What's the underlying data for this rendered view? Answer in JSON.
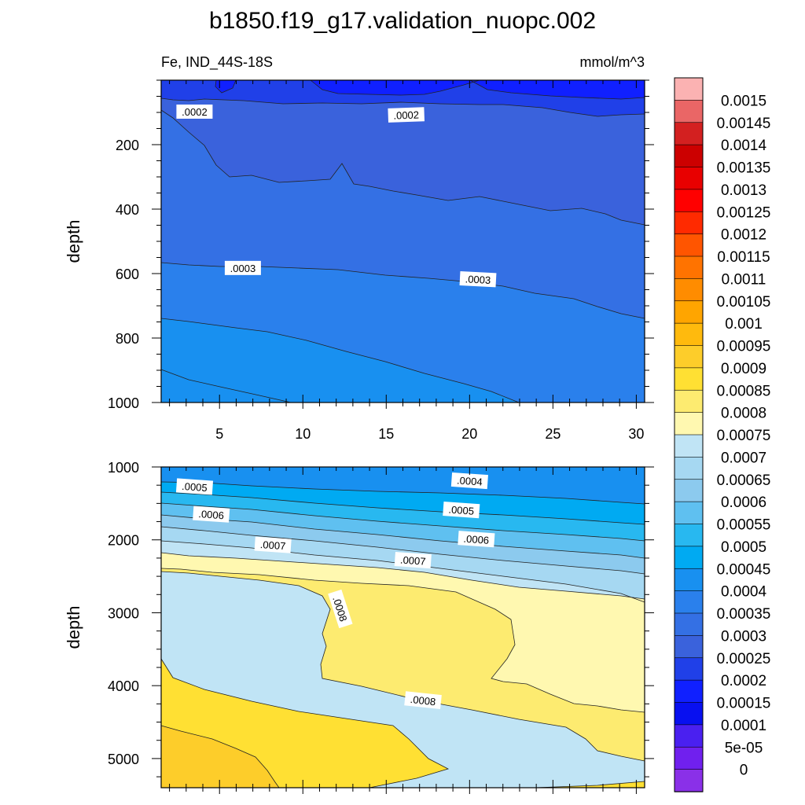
{
  "chart_data": {
    "type": "contour",
    "title": "b1850.f19_g17.validation_nuopc.002",
    "variable_label": "Fe, IND_44S-18S",
    "units": "mmol/m^3",
    "panels": [
      {
        "name": "upper",
        "ylabel": "depth",
        "ylim": [
          1000,
          0
        ],
        "xlim": [
          1.5,
          30.5
        ],
        "x_ticks": [
          5,
          10,
          15,
          20,
          25,
          30
        ],
        "y_ticks": [
          200,
          400,
          600,
          800,
          1000
        ],
        "contour_labels": [
          {
            "text": ".0002",
            "x": 3.5,
            "y": 100,
            "angle": 0
          },
          {
            "text": ".0002",
            "x": 16.2,
            "y": 110,
            "angle": -2
          },
          {
            "text": ".0003",
            "x": 6.4,
            "y": 585,
            "angle": 0
          },
          {
            "text": ".0003",
            "x": 20.5,
            "y": 620,
            "angle": 3
          }
        ]
      },
      {
        "name": "lower",
        "ylabel": "depth",
        "ylim": [
          5400,
          1000
        ],
        "xlim": [
          1.5,
          30.5
        ],
        "x_ticks": [
          5,
          10,
          15,
          20,
          25,
          30
        ],
        "y_ticks": [
          1000,
          2000,
          3000,
          4000,
          5000
        ],
        "contour_labels": [
          {
            "text": ".0005",
            "x": 3.5,
            "y": 1280,
            "angle": 4
          },
          {
            "text": ".0006",
            "x": 4.5,
            "y": 1660,
            "angle": 4
          },
          {
            "text": ".0007",
            "x": 8.2,
            "y": 2080,
            "angle": 4
          },
          {
            "text": ".0004",
            "x": 20.0,
            "y": 1200,
            "angle": 4
          },
          {
            "text": ".0005",
            "x": 19.5,
            "y": 1600,
            "angle": 4
          },
          {
            "text": ".0006",
            "x": 20.4,
            "y": 2000,
            "angle": 4
          },
          {
            "text": ".0007",
            "x": 16.6,
            "y": 2290,
            "angle": 4
          },
          {
            "text": ".0008",
            "x": 12.2,
            "y": 2950,
            "angle": 72
          },
          {
            "text": ".0008",
            "x": 17.2,
            "y": 4210,
            "angle": 6
          }
        ]
      }
    ],
    "colorbar": {
      "levels": [
        "0.0015",
        "0.00145",
        "0.0014",
        "0.00135",
        "0.0013",
        "0.00125",
        "0.0012",
        "0.00115",
        "0.0011",
        "0.00105",
        "0.001",
        "0.00095",
        "0.0009",
        "0.00085",
        "0.0008",
        "0.00075",
        "0.0007",
        "0.00065",
        "0.0006",
        "0.00055",
        "0.0005",
        "0.00045",
        "0.0004",
        "0.00035",
        "0.0003",
        "0.00025",
        "0.0002",
        "0.00015",
        "0.0001",
        "5e-05",
        "0"
      ],
      "colors": [
        "#fbb2b2",
        "#ea6666",
        "#d32020",
        "#cc0000",
        "#e80000",
        "#ff0000",
        "#ff2a00",
        "#ff5500",
        "#ff7300",
        "#ff8c00",
        "#ffa500",
        "#ffba0d",
        "#fdcd2a",
        "#ffe033",
        "#fdeb70",
        "#fff8b0",
        "#c0e4f5",
        "#a6d8f2",
        "#8ccaee",
        "#5fc0f0",
        "#28b8f0",
        "#00aaf2",
        "#1890f0",
        "#2a80ec",
        "#3470e4",
        "#3a62dc",
        "#2040e8",
        "#1020ff",
        "#0810f0",
        "#4a20f0",
        "#7020ee",
        "#8a30e8"
      ]
    }
  }
}
